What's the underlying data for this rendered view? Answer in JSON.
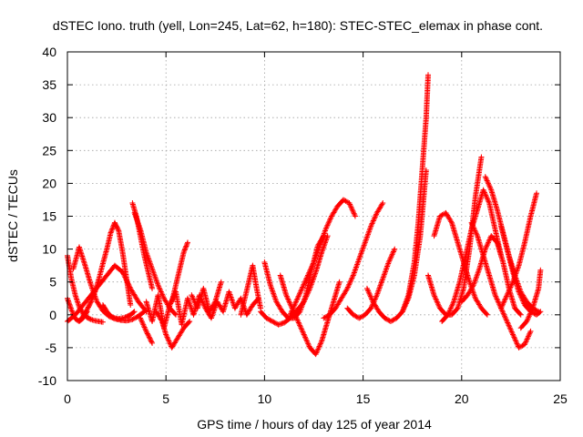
{
  "chart_data": {
    "type": "scatter",
    "title": "dSTEC Iono. truth (yell, Lon=245, Lat=62, h=180): STEC-STEC_elemax in phase cont.",
    "xlabel": "GPS time / hours of day 125 of year 2014",
    "ylabel": "dSTEC  / TECUs",
    "xlim": [
      0,
      25
    ],
    "ylim": [
      -10,
      40
    ],
    "xticks": [
      0,
      5,
      10,
      15,
      20,
      25
    ],
    "yticks": [
      -10,
      -5,
      0,
      5,
      10,
      15,
      20,
      25,
      30,
      35,
      40
    ],
    "grid": true,
    "marker": "+",
    "color": "#ff0000",
    "series": [
      {
        "x": [
          0.0,
          0.2,
          0.4,
          0.6,
          0.8,
          1.0,
          1.2,
          1.4,
          1.6,
          1.8
        ],
        "y": [
          9.0,
          5.5,
          3.0,
          1.2,
          0.2,
          -0.4,
          -0.7,
          -0.9,
          -1.0,
          -1.1
        ]
      },
      {
        "x": [
          0.0,
          0.2,
          0.4,
          0.6,
          0.8,
          1.0
        ],
        "y": [
          2.5,
          0.8,
          -0.6,
          -1.0,
          -0.5,
          0.5
        ]
      },
      {
        "x": [
          0.6,
          0.8,
          1.0,
          1.2,
          1.4,
          1.6,
          1.8,
          2.0,
          2.2,
          2.4
        ],
        "y": [
          -1.0,
          -0.2,
          0.8,
          2.0,
          3.5,
          5.5,
          7.8,
          10.0,
          12.5,
          14.0
        ]
      },
      {
        "x": [
          2.4,
          2.6,
          2.8,
          3.0,
          3.2
        ],
        "y": [
          14.0,
          12.8,
          9.5,
          5.5,
          1.5
        ]
      },
      {
        "x": [
          0.3,
          0.6,
          0.9,
          1.2,
          1.5,
          1.8,
          2.1,
          2.4,
          2.7,
          3.0,
          3.3,
          3.6,
          3.9
        ],
        "y": [
          7.0,
          10.3,
          7.5,
          4.5,
          2.0,
          0.6,
          -0.2,
          -0.6,
          -0.8,
          -0.9,
          -0.7,
          -0.2,
          0.5
        ]
      },
      {
        "x": [
          0.0,
          0.4,
          0.8,
          1.2,
          1.6,
          2.0,
          2.4,
          2.8,
          3.2,
          3.6,
          4.0
        ],
        "y": [
          -1.0,
          0.0,
          1.5,
          3.0,
          4.5,
          6.0,
          7.5,
          6.5,
          4.0,
          2.0,
          0.5
        ]
      },
      {
        "x": [
          1.8,
          2.0,
          2.2,
          2.4,
          2.6,
          2.8,
          3.0,
          3.2,
          3.4
        ],
        "y": [
          1.5,
          0.5,
          -0.2,
          -0.5,
          -0.6,
          -0.5,
          -0.3,
          0.0,
          0.5
        ]
      },
      {
        "x": [
          3.3,
          3.5,
          3.7,
          3.9,
          4.1,
          4.3
        ],
        "y": [
          17.0,
          15.0,
          12.0,
          9.0,
          6.5,
          4.0
        ]
      },
      {
        "x": [
          3.4,
          3.7,
          4.0,
          4.3,
          4.6,
          4.9,
          5.2,
          5.5
        ],
        "y": [
          15.5,
          13.0,
          9.5,
          7.0,
          4.5,
          2.5,
          1.0,
          0.0
        ]
      },
      {
        "x": [
          3.7,
          4.0,
          4.3
        ],
        "y": [
          -0.5,
          -2.5,
          -4.3
        ]
      },
      {
        "x": [
          4.5,
          4.8,
          5.0,
          5.3,
          5.6,
          5.9,
          6.2
        ],
        "y": [
          0.5,
          -1.0,
          -3.0,
          -5.0,
          -3.5,
          -2.0,
          -1.0
        ]
      },
      {
        "x": [
          5.3,
          5.5,
          5.7,
          5.9,
          6.1
        ],
        "y": [
          2.0,
          4.5,
          7.0,
          9.5,
          11.0
        ]
      },
      {
        "x": [
          4.0,
          4.3,
          4.6,
          4.9,
          5.2,
          5.5,
          5.8,
          6.1,
          6.4,
          6.7,
          7.0,
          7.3,
          7.6,
          7.9,
          8.2,
          8.5,
          8.8,
          9.1,
          9.4,
          9.7
        ],
        "y": [
          2.0,
          -1.0,
          3.0,
          -2.0,
          1.5,
          3.5,
          -1.5,
          2.5,
          0.0,
          3.0,
          1.0,
          -0.5,
          2.0,
          0.5,
          3.5,
          1.0,
          2.5,
          0.0,
          1.5,
          2.5
        ]
      },
      {
        "x": [
          6.3,
          6.6,
          6.9,
          7.2,
          7.5,
          7.8
        ],
        "y": [
          3.0,
          1.0,
          4.0,
          0.5,
          2.0,
          5.0
        ]
      },
      {
        "x": [
          8.8,
          9.0,
          9.2,
          9.4,
          9.6,
          9.8
        ],
        "y": [
          0.0,
          2.5,
          5.0,
          7.5,
          4.0,
          1.0
        ]
      },
      {
        "x": [
          9.8,
          10.1,
          10.4,
          10.7,
          11.0,
          11.3,
          11.6,
          12.0,
          12.3,
          12.6,
          12.9,
          13.2
        ],
        "y": [
          0.5,
          -0.5,
          -1.0,
          -1.5,
          -1.2,
          -0.5,
          0.5,
          2.0,
          4.0,
          6.5,
          9.5,
          12.0
        ]
      },
      {
        "x": [
          10.0,
          10.3,
          10.6,
          10.9,
          11.2,
          11.5,
          11.8,
          12.1,
          12.4,
          12.7,
          13.0
        ],
        "y": [
          8.0,
          4.5,
          2.0,
          0.5,
          -0.5,
          -0.5,
          0.5,
          3.0,
          7.0,
          10.5,
          12.0
        ]
      },
      {
        "x": [
          10.8,
          11.1,
          11.4,
          11.7,
          12.0,
          12.3,
          12.6,
          12.9,
          13.2,
          13.5,
          13.8
        ],
        "y": [
          6.0,
          3.0,
          1.0,
          -1.0,
          -3.0,
          -5.0,
          -6.0,
          -4.0,
          -1.0,
          2.0,
          5.0
        ]
      },
      {
        "x": [
          11.3,
          11.6,
          11.9,
          12.2,
          12.5,
          12.8,
          13.1,
          13.4,
          13.7,
          14.0,
          14.3,
          14.6
        ],
        "y": [
          0.0,
          2.0,
          4.0,
          6.0,
          8.0,
          10.5,
          13.0,
          15.0,
          16.5,
          17.5,
          17.0,
          15.0
        ]
      },
      {
        "x": [
          13.0,
          13.3,
          13.6,
          13.9,
          14.2,
          14.5,
          14.8,
          15.1,
          15.4,
          15.7,
          16.0
        ],
        "y": [
          -0.5,
          0.0,
          1.0,
          2.5,
          4.0,
          6.0,
          8.5,
          11.0,
          13.5,
          15.5,
          17.0
        ]
      },
      {
        "x": [
          14.2,
          14.5,
          14.8,
          15.1,
          15.4,
          15.7,
          16.0,
          16.3,
          16.6
        ],
        "y": [
          1.0,
          0.0,
          -0.5,
          0.0,
          1.0,
          3.0,
          5.5,
          8.0,
          10.0
        ]
      },
      {
        "x": [
          15.2,
          15.5,
          15.8,
          16.1,
          16.4,
          16.7,
          17.0,
          17.3,
          17.6,
          17.9,
          18.2
        ],
        "y": [
          4.0,
          2.0,
          0.5,
          -0.5,
          -1.0,
          -0.5,
          0.5,
          2.5,
          6.0,
          12.0,
          22.0
        ]
      },
      {
        "x": [
          17.0,
          17.3,
          17.6,
          17.8,
          18.0,
          18.2,
          18.3
        ],
        "y": [
          0.5,
          3.0,
          8.0,
          14.0,
          22.0,
          30.0,
          36.5
        ]
      },
      {
        "x": [
          18.3,
          18.6,
          18.9,
          19.2,
          19.5,
          19.8,
          20.1,
          20.4,
          20.7,
          21.0
        ],
        "y": [
          6.0,
          3.0,
          1.0,
          0.0,
          0.0,
          1.0,
          4.0,
          10.0,
          18.0,
          24.0
        ]
      },
      {
        "x": [
          18.6,
          18.9,
          19.2,
          19.5,
          19.8,
          20.1,
          20.4,
          20.7,
          21.0,
          21.3
        ],
        "y": [
          12.0,
          15.0,
          15.5,
          14.0,
          11.0,
          8.0,
          5.0,
          2.5,
          1.0,
          0.0
        ]
      },
      {
        "x": [
          19.0,
          19.3,
          19.6,
          19.9,
          20.2,
          20.5,
          20.8,
          21.1,
          21.4,
          21.7,
          22.0
        ],
        "y": [
          -1.0,
          0.0,
          2.0,
          5.0,
          9.0,
          13.0,
          16.0,
          19.0,
          17.0,
          13.0,
          9.0
        ]
      },
      {
        "x": [
          20.0,
          20.3,
          20.6,
          20.9,
          21.2,
          21.5,
          21.8,
          22.1,
          22.4,
          22.7,
          23.0
        ],
        "y": [
          2.0,
          3.0,
          4.5,
          7.0,
          10.0,
          12.0,
          11.0,
          8.0,
          4.0,
          1.0,
          0.0
        ]
      },
      {
        "x": [
          20.5,
          20.8,
          21.1,
          21.4,
          21.7,
          22.0,
          22.3,
          22.6,
          22.9,
          23.2,
          23.5
        ],
        "y": [
          14.0,
          12.0,
          9.0,
          6.0,
          3.0,
          1.0,
          -1.0,
          -3.0,
          -5.0,
          -4.5,
          -2.5
        ]
      },
      {
        "x": [
          21.2,
          21.5,
          21.8,
          22.1,
          22.4,
          22.7,
          23.0,
          23.3,
          23.6,
          23.9
        ],
        "y": [
          21.0,
          19.0,
          16.0,
          12.5,
          9.0,
          6.0,
          3.5,
          2.0,
          1.0,
          0.5
        ]
      },
      {
        "x": [
          22.0,
          22.3,
          22.6,
          22.9,
          23.2,
          23.5,
          23.8,
          24.0
        ],
        "y": [
          13.5,
          10.0,
          6.5,
          3.5,
          1.5,
          0.5,
          0.0,
          0.5
        ]
      },
      {
        "x": [
          22.0,
          22.3,
          22.6,
          22.9,
          23.2,
          23.5,
          23.8
        ],
        "y": [
          1.0,
          3.0,
          5.0,
          7.5,
          11.0,
          15.0,
          18.5
        ]
      },
      {
        "x": [
          23.0,
          23.3,
          23.6,
          23.9,
          24.0
        ],
        "y": [
          -2.0,
          -1.0,
          1.0,
          4.0,
          6.8
        ]
      }
    ]
  }
}
